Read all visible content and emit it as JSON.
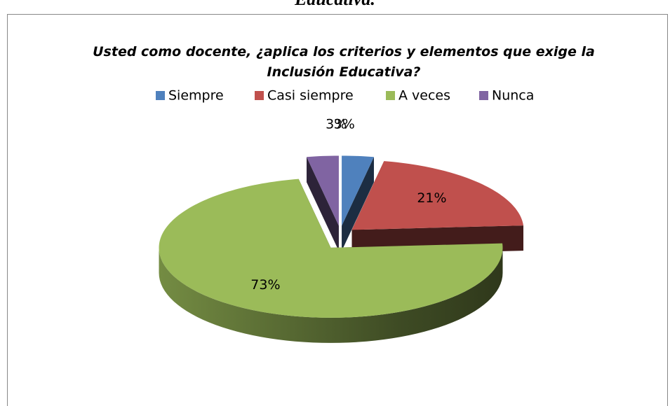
{
  "page_heading": "Educativa.",
  "chart_data": {
    "type": "pie3d",
    "title": "Usted como docente, ¿aplica los criterios y elementos que exige la Inclusión Educativa?",
    "categories": [
      "Siempre",
      "Casi siempre",
      "A veces",
      "Nunca"
    ],
    "values": [
      3,
      21,
      73,
      3
    ],
    "value_labels": [
      "3%",
      "21%",
      "73%",
      "3%"
    ],
    "colors": [
      "#4f81bd",
      "#c0504d",
      "#9bbb59",
      "#8064a2"
    ],
    "legend": "top"
  }
}
